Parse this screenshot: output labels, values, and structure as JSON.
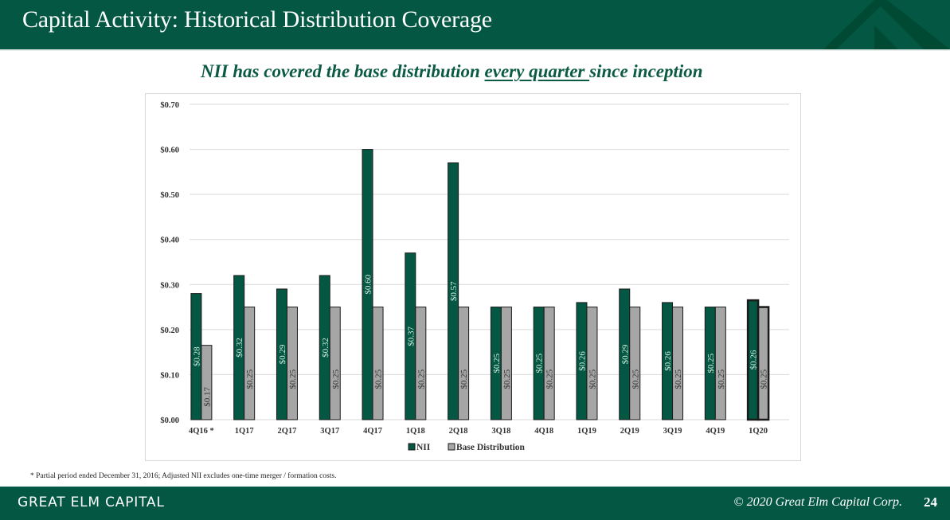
{
  "header": {
    "title": "Capital Activity: Historical Distribution Coverage"
  },
  "subtitle": {
    "before": "NII has covered the base distribution ",
    "underlined": "every quarter ",
    "after": "since inception"
  },
  "colors": {
    "brand_green": "#035743",
    "nii_bar": "#035743",
    "base_bar": "#a6a6a6",
    "subtitle_green": "#0b5a44",
    "nii_label": "#cfeee0",
    "base_label": "#333333",
    "gridline": "#d9d9d9"
  },
  "chart_data": {
    "type": "bar",
    "title": "",
    "xlabel": "",
    "ylabel": "",
    "ylim": [
      0,
      0.7
    ],
    "yticks": [
      0.0,
      0.1,
      0.2,
      0.3,
      0.4,
      0.5,
      0.6,
      0.7
    ],
    "ytick_labels": [
      "$0.00",
      "$0.10",
      "$0.20",
      "$0.30",
      "$0.40",
      "$0.50",
      "$0.60",
      "$0.70"
    ],
    "grid": true,
    "legend_position": "bottom-center",
    "categories": [
      "4Q16 *",
      "1Q17",
      "2Q17",
      "3Q17",
      "4Q17",
      "1Q18",
      "2Q18",
      "3Q18",
      "4Q18",
      "1Q19",
      "2Q19",
      "3Q19",
      "4Q19",
      "1Q20"
    ],
    "series": [
      {
        "name": "NII",
        "values": [
          0.28,
          0.32,
          0.29,
          0.32,
          0.6,
          0.37,
          0.57,
          0.25,
          0.25,
          0.26,
          0.29,
          0.26,
          0.25,
          0.265
        ],
        "labels": [
          "$0.28",
          "$0.32",
          "$0.29",
          "$0.32",
          "$0.60",
          "$0.37",
          "$0.57",
          "$0.25",
          "$0.25",
          "$0.26",
          "$0.29",
          "$0.26",
          "$0.25",
          "$0.26"
        ]
      },
      {
        "name": "Base Distribution",
        "values": [
          0.165,
          0.25,
          0.25,
          0.25,
          0.25,
          0.25,
          0.25,
          0.25,
          0.25,
          0.25,
          0.25,
          0.25,
          0.25,
          0.25
        ],
        "labels": [
          "$0.17",
          "$0.25",
          "$0.25",
          "$0.25",
          "$0.25",
          "$0.25",
          "$0.25",
          "$0.25",
          "$0.25",
          "$0.25",
          "$0.25",
          "$0.25",
          "$0.25",
          "$0.25"
        ]
      }
    ],
    "highlighted_category": "1Q20"
  },
  "footnote": "* Partial period ended December 31, 2016; Adjusted NII excludes one-time merger / formation costs.",
  "footer": {
    "brand": "GREAT ELM CAPITAL",
    "copyright": "© 2020 Great Elm Capital Corp.",
    "page_number": "24"
  }
}
